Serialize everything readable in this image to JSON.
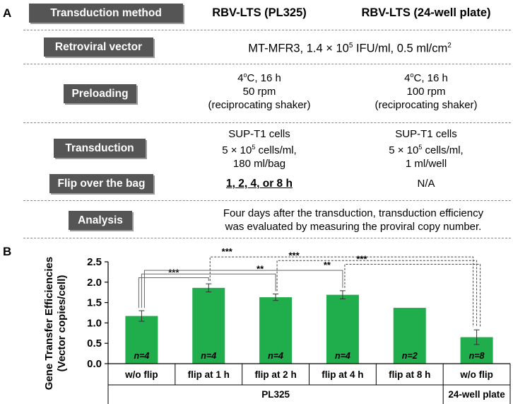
{
  "panel_a": {
    "letter": "A",
    "header": {
      "method_label": "Transduction method",
      "col1": "RBV-LTS (PL325)",
      "col2": "RBV-LTS (24-well plate)"
    },
    "rows": {
      "vector": {
        "label": "Retroviral vector",
        "text_pre": "MT-MFR3, 1.4 × 10",
        "text_sup": "5",
        "text_mid": " IFU/ml, 0.5 ml/cm",
        "text_sup2": "2"
      },
      "preloading": {
        "label": "Preloading",
        "col1": {
          "temp_pre": "4",
          "temp_sup": "o",
          "temp_post": "C, 16 h",
          "line2": "50 rpm",
          "line3": "(reciprocating shaker)"
        },
        "col2": {
          "temp_pre": "4",
          "temp_sup": "o",
          "temp_post": "C, 16 h",
          "line2": "100 rpm",
          "line3": "(reciprocating shaker)"
        }
      },
      "transduction": {
        "label": "Transduction",
        "col1": {
          "line1": "SUP-T1 cells",
          "line2_pre": "5 × 10",
          "line2_sup": "5",
          "line2_post": " cells/ml,",
          "line3": "180 ml/bag"
        },
        "col2": {
          "line1": "SUP-T1 cells",
          "line2_pre": "5 × 10",
          "line2_sup": "5",
          "line2_post": " cells/ml,",
          "line3": "1 ml/well"
        }
      },
      "flip": {
        "label": "Flip over the bag",
        "col1": "1, 2, 4, or 8 h",
        "col2": "N/A"
      },
      "analysis": {
        "label": "Analysis",
        "line1": "Four days after the transduction, transduction efficiency",
        "line2": "was evaluated by measuring the proviral copy number."
      }
    }
  },
  "panel_b": {
    "letter": "B"
  },
  "chart_data": {
    "type": "bar",
    "ylabel": "Gene Transfer Efficiencies (Vector copies/cell)",
    "ylabel_line1": "Gene Transfer Efficiencies",
    "ylabel_line2": "(Vector copies/cell)",
    "ylim": [
      0,
      2.5
    ],
    "yticks": [
      "0.0",
      "0.5",
      "1.0",
      "1.5",
      "2.0",
      "2.5"
    ],
    "categories": [
      "w/o flip",
      "flip at 1 h",
      "flip at 2 h",
      "flip at 4 h",
      "flip at 8 h",
      "w/o flip"
    ],
    "values": [
      1.17,
      1.86,
      1.63,
      1.69,
      1.37,
      0.65
    ],
    "errors": [
      0.13,
      0.1,
      0.08,
      0.1,
      0,
      0.18
    ],
    "n_labels": [
      "n=4",
      "n=4",
      "n=4",
      "n=4",
      "n=2",
      "n=8"
    ],
    "groups": [
      {
        "label": "PL325",
        "span": [
          0,
          4
        ]
      },
      {
        "label": "24-well plate",
        "span": [
          5,
          5
        ]
      }
    ],
    "bar_color": "#1fae4b",
    "grid": false,
    "comparisons": [
      {
        "from": 0,
        "to": 1,
        "label": "***",
        "style": "solid"
      },
      {
        "from": 0,
        "to": 2,
        "label": "**",
        "style": "solid"
      },
      {
        "from": 0,
        "to": 3,
        "label": "**",
        "style": "solid"
      },
      {
        "from": 1,
        "to": 5,
        "label": "***",
        "style": "dashed"
      },
      {
        "from": 2,
        "to": 5,
        "label": "***",
        "style": "dashed"
      },
      {
        "from": 3,
        "to": 5,
        "label": "***",
        "style": "dashed"
      }
    ]
  }
}
